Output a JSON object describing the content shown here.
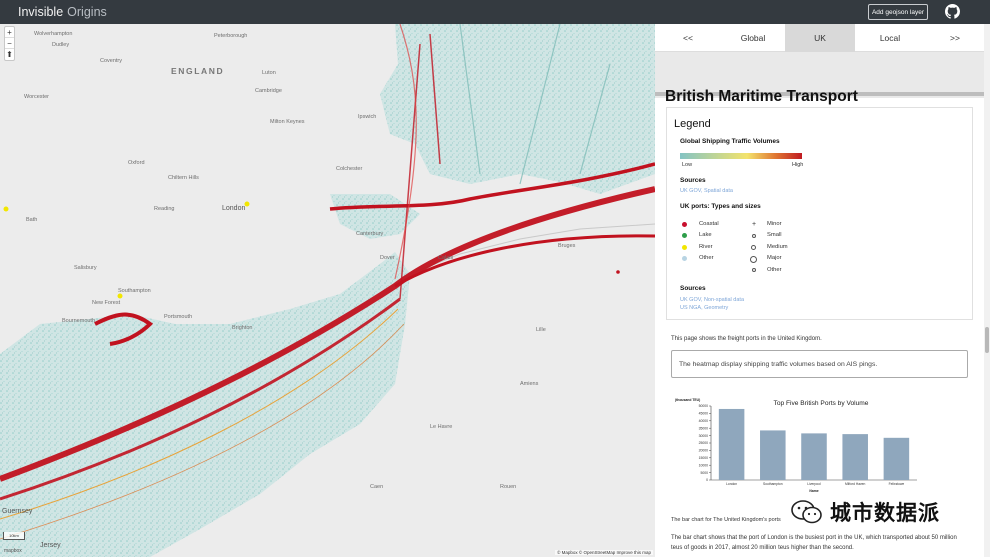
{
  "app": {
    "brand_part1": "Invisible",
    "brand_part2": "Origins",
    "add_layer_label": "Add geojson layer"
  },
  "map": {
    "labels": [
      {
        "text": "Wolverhampton",
        "cls": ""
      },
      {
        "text": "Dudley",
        "cls": ""
      },
      {
        "text": "Coventry",
        "cls": ""
      },
      {
        "text": "Peterborough",
        "cls": ""
      },
      {
        "text": "ENGLAND",
        "cls": "big"
      },
      {
        "text": "Cambridge",
        "cls": ""
      },
      {
        "text": "Worcester",
        "cls": ""
      },
      {
        "text": "Milton Keynes",
        "cls": ""
      },
      {
        "text": "Luton",
        "cls": ""
      },
      {
        "text": "Oxford",
        "cls": ""
      },
      {
        "text": "Chiltern Hills",
        "cls": ""
      },
      {
        "text": "Reading",
        "cls": ""
      },
      {
        "text": "London",
        "cls": "med"
      },
      {
        "text": "Bath",
        "cls": ""
      },
      {
        "text": "Salisbury",
        "cls": ""
      },
      {
        "text": "Southampton",
        "cls": ""
      },
      {
        "text": "New Forest",
        "cls": ""
      },
      {
        "text": "Bournemouth",
        "cls": ""
      },
      {
        "text": "Portsmouth",
        "cls": ""
      },
      {
        "text": "Brighton",
        "cls": ""
      },
      {
        "text": "Canterbury",
        "cls": ""
      },
      {
        "text": "Dover",
        "cls": ""
      },
      {
        "text": "Ipswich",
        "cls": ""
      },
      {
        "text": "Colchester",
        "cls": ""
      },
      {
        "text": "Calais",
        "cls": ""
      },
      {
        "text": "Bruges",
        "cls": ""
      },
      {
        "text": "Lille",
        "cls": ""
      },
      {
        "text": "Amiens",
        "cls": ""
      },
      {
        "text": "Rouen",
        "cls": ""
      },
      {
        "text": "Le Havre",
        "cls": ""
      },
      {
        "text": "Caen",
        "cls": ""
      },
      {
        "text": "Guernsey",
        "cls": "med"
      },
      {
        "text": "Jersey",
        "cls": "med"
      }
    ],
    "zoom_in": "+",
    "zoom_out": "−",
    "compass": "⬆",
    "scale_label": "10km",
    "attribution": "© Mapbox © OpenStreetMap  Improve this map",
    "logo_label": "mapbox"
  },
  "tabs": [
    {
      "label": "<<",
      "active": false
    },
    {
      "label": "Global",
      "active": false
    },
    {
      "label": "UK",
      "active": true
    },
    {
      "label": "Local",
      "active": false
    },
    {
      "label": ">>",
      "active": false
    }
  ],
  "panel": {
    "title": "British Maritime Transport",
    "legend": {
      "title": "Legend",
      "traffic_heading": "Global Shipping Traffic Volumes",
      "low": "Low",
      "high": "High",
      "sources_heading_1": "Sources",
      "source_1": "UK GOV, Spatial data",
      "ports_heading": "UK ports: Types and sizes",
      "types": [
        {
          "label": "Coastal",
          "color": "#c8102e"
        },
        {
          "label": "Lake",
          "color": "#2e9e4a"
        },
        {
          "label": "River",
          "color": "#f2e600"
        },
        {
          "label": "Other",
          "color": "#b8d4e3"
        }
      ],
      "sizes": [
        {
          "label": "Minor",
          "symbol": "+"
        },
        {
          "label": "Small"
        },
        {
          "label": "Medium"
        },
        {
          "label": "Major"
        },
        {
          "label": "Other"
        }
      ],
      "sources_heading_2": "Sources",
      "source_2a": "UK GOV, Non-spatial data",
      "source_2b": "US NGA, Geometry"
    },
    "intro": "This page shows the freight ports in the United Kingdom.",
    "info_box": "The heatmap display shipping traffic volumes based on AIS pings.",
    "chart_caption": "The bar chart for The United Kingdom's ports",
    "summary_1": "The bar chart shows that the port of London is the busiest port in the UK, which transported about 50 million",
    "summary_2": "teus of goods in 2017, almost 20 million teus higher than the second."
  },
  "watermark": "城市数据派",
  "chart_data": {
    "type": "bar",
    "title": "Top Five British Ports by Volume",
    "ylabel": "(thousand TEU)",
    "xlabel": "Name",
    "categories": [
      "London",
      "Southampton",
      "Liverpool",
      "Milford Haven",
      "Felixstowe"
    ],
    "values": [
      48000,
      33500,
      31500,
      31000,
      28500
    ],
    "yticks": [
      "0",
      "5000",
      "10000",
      "15000",
      "20000",
      "25000",
      "30000",
      "35000",
      "40000",
      "45000",
      "50000"
    ],
    "ylim": [
      0,
      50000
    ],
    "bar_color": "#8fa7bd"
  }
}
